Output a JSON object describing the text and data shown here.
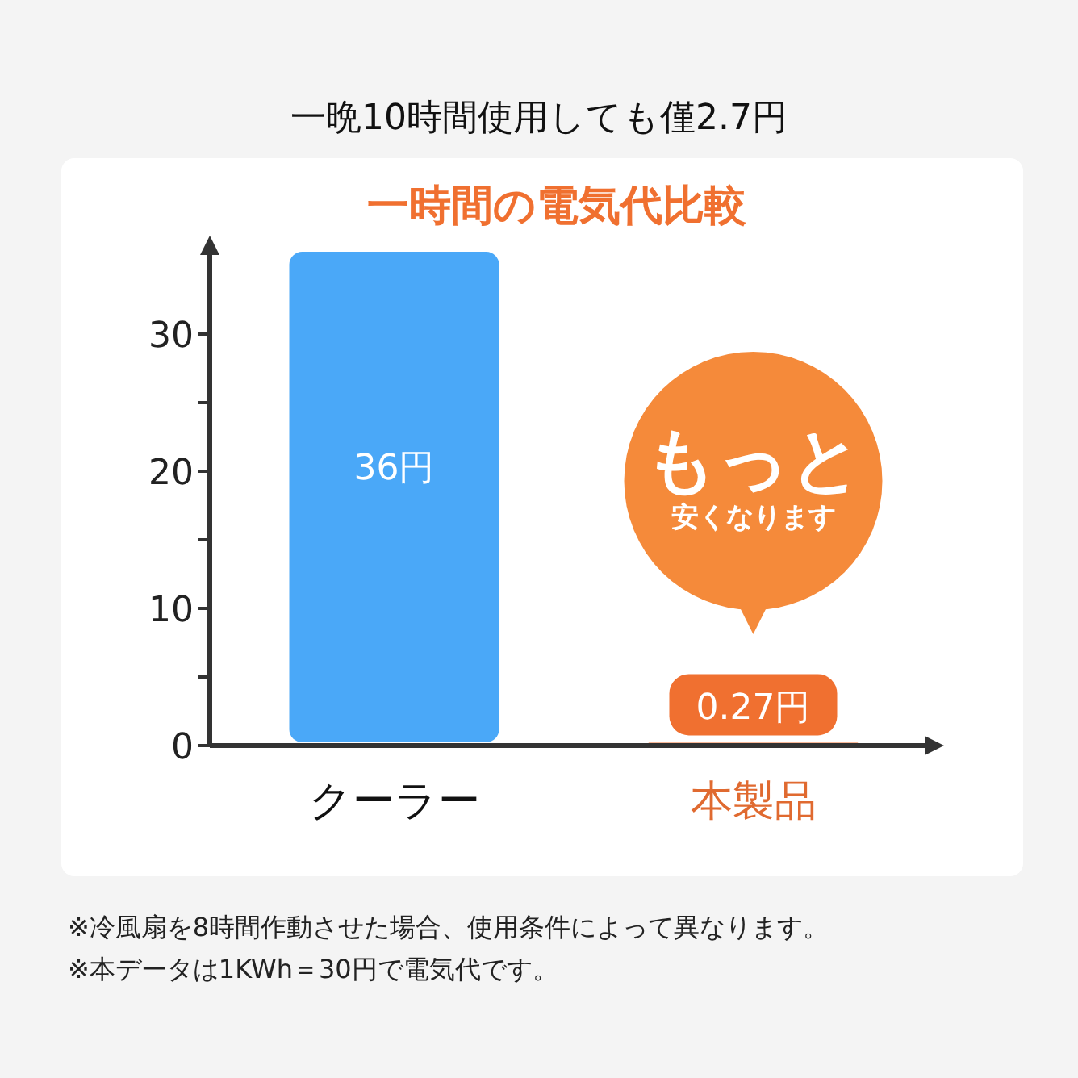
{
  "chart_data": {
    "type": "bar",
    "title": "一晩10時間使用しても僅2.7円",
    "subtitle": "一時間の電気代比較",
    "categories": [
      "クーラー",
      "本製品"
    ],
    "values": [
      36,
      0.27
    ],
    "colors": [
      "#4aa8f8",
      "#f07030"
    ],
    "value_labels": [
      "36円",
      "0.27円"
    ],
    "ylim": [
      0,
      36
    ],
    "yticks": [
      0,
      {
        "value": 5,
        "label": null
      },
      10,
      {
        "value": 15,
        "label": null
      },
      20,
      {
        "value": 25,
        "label": null
      },
      30
    ],
    "grid": false,
    "annotations": [
      "もっと",
      "安くなります",
      "※冷風扇を8時間作動させた場合、使用条件によって異なります。",
      "※本データは1KWh＝30円で電気代です。"
    ]
  }
}
